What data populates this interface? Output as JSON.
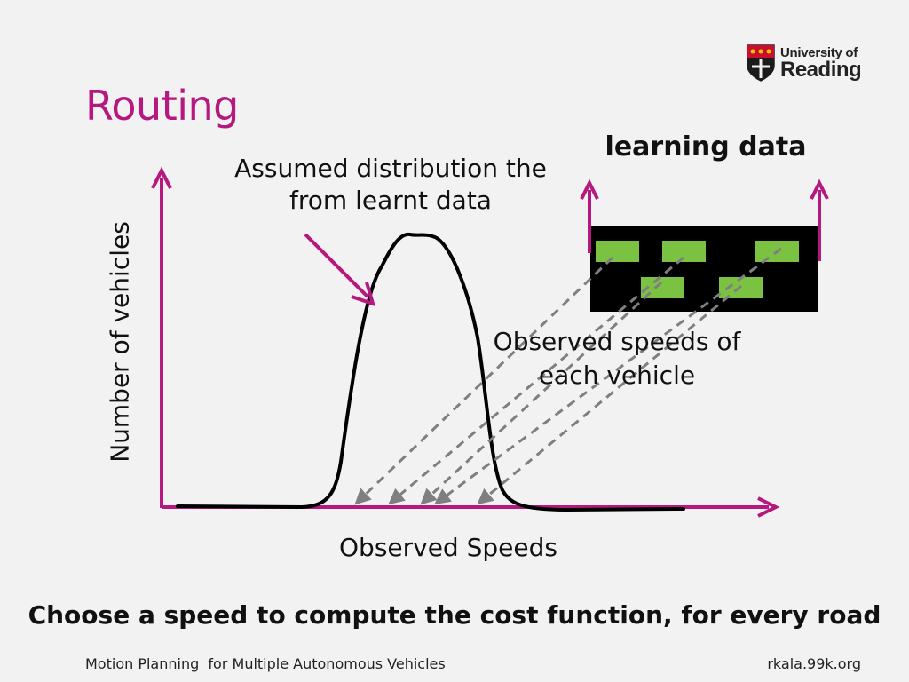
{
  "title": "Routing",
  "logo": {
    "line1": "University of",
    "line2": "Reading"
  },
  "diagram": {
    "distribution_label": [
      "Assumed distribution the",
      "from learnt data"
    ],
    "learning_data_label": "learning data",
    "observed_each_label": [
      "Observed speeds of",
      "each vehicle"
    ],
    "x_axis_label": "Observed Speeds",
    "y_axis_label": "Number of vehicles",
    "colors": {
      "axis": "#b5197f",
      "curve": "#000000",
      "road": "#000000",
      "vehicle": "#7cc242",
      "dashed": "#7f7f7f"
    },
    "icons": [
      "axis-arrow",
      "pointer-arrow",
      "dashed-arrow"
    ]
  },
  "statement": "Choose a speed to compute the cost function, for every road",
  "footer": {
    "left": "Motion Planning  for Multiple Autonomous Vehicles",
    "right": "rkala.99k.org"
  }
}
